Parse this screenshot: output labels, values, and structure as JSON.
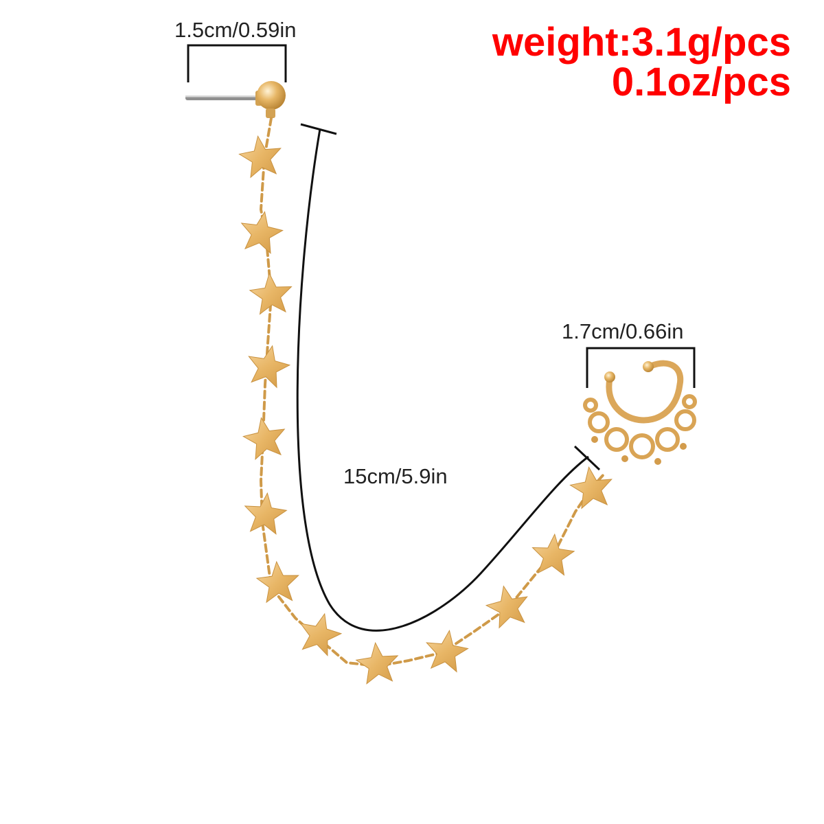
{
  "measurements": {
    "stud_width": "1.5cm/0.59in",
    "cuff_width": "1.7cm/0.66in",
    "chain_length": "15cm/5.9in"
  },
  "weight": {
    "grams": "weight:3.1g/pcs",
    "ounces": "0.1oz/pcs"
  },
  "colors": {
    "gold": "#e9b86a",
    "gold_dark": "#c8913f",
    "line": "#111111",
    "weight_text": "#ff0000"
  }
}
